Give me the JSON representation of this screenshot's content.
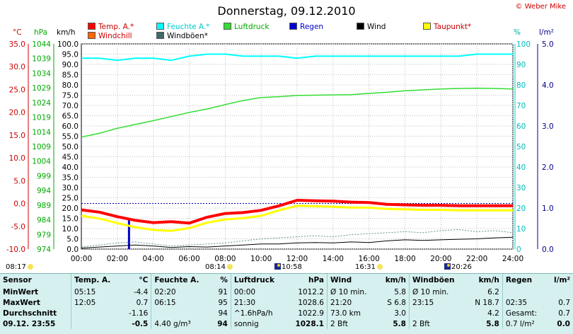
{
  "title": "Donnerstag, 09.12.2010",
  "copyright": "© Weber Mike",
  "legend": [
    {
      "label": "Temp. A.*",
      "color": "#ff0000",
      "text_color": "#cc0000"
    },
    {
      "label": "Feuchte A.*",
      "color": "#00ffff",
      "text_color": "#00cccc"
    },
    {
      "label": "Luftdruck",
      "color": "#33dd33",
      "text_color": "#00aa00"
    },
    {
      "label": "Regen",
      "color": "#0000cc",
      "text_color": "#0000cc"
    },
    {
      "label": "Wind",
      "color": "#000000",
      "text_color": "#000000"
    },
    {
      "label": "Taupunkt*",
      "color": "#ffff00",
      "text_color": "#cc0000"
    },
    {
      "label": "Windchill",
      "color": "#ff6600",
      "text_color": "#cc0000"
    },
    {
      "label": "Windböen*",
      "color": "#3c6b6b",
      "text_color": "#000000"
    }
  ],
  "units": {
    "celsius": "°C",
    "hpa": "hPa",
    "kmh": "km/h",
    "percent": "%",
    "rain": "l/m²"
  },
  "markers": {
    "sunrise_left": "08:17",
    "sunrise": "08:14",
    "moonrise": "10:58",
    "sunset": "16:31",
    "moonset": "20:26"
  },
  "chart_data": {
    "type": "line",
    "x_ticks": [
      "00:00",
      "02:00",
      "04:00",
      "06:00",
      "08:00",
      "10:00",
      "12:00",
      "14:00",
      "16:00",
      "18:00",
      "20:00",
      "22:00",
      "24:00"
    ],
    "axes": {
      "temp_ticks": [
        "35.0",
        "30.0",
        "25.0",
        "20.0",
        "15.0",
        "10.0",
        "5.0",
        "0.0",
        "-5.0",
        "-10.0"
      ],
      "temp_range": [
        -10,
        35
      ],
      "hpa_ticks": [
        "1044",
        "1039",
        "1034",
        "1029",
        "1024",
        "1019",
        "1014",
        "1009",
        "1004",
        "999",
        "994",
        "989",
        "984",
        "979",
        "974"
      ],
      "hpa_range": [
        974,
        1044
      ],
      "kmh_ticks": [
        "100.0",
        "95.0",
        "90.0",
        "85.0",
        "80.0",
        "75.0",
        "70.0",
        "65.0",
        "60.0",
        "55.0",
        "50.0",
        "45.0",
        "40.0",
        "35.0",
        "30.0",
        "25.0",
        "20.0",
        "15.0",
        "10.0",
        "5.0",
        "0.0"
      ],
      "kmh_range": [
        0,
        100
      ],
      "percent_ticks": [
        "100",
        "90",
        "80",
        "70",
        "60",
        "50",
        "40",
        "30",
        "20",
        "10",
        "0"
      ],
      "percent_range": [
        0,
        100
      ],
      "rain_ticks": [
        "5.0",
        "4.0",
        "3.0",
        "2.0",
        "1.0",
        "0.0"
      ],
      "rain_range": [
        0,
        5
      ]
    },
    "grid": true,
    "series": [
      {
        "name": "Temp. A.*",
        "axis": "temp",
        "color": "#ff0000",
        "x": [
          0,
          1,
          2,
          3,
          4,
          5,
          6,
          7,
          8,
          9,
          10,
          11,
          12,
          13,
          14,
          15,
          16,
          17,
          18,
          19,
          20,
          21,
          22,
          23,
          24
        ],
        "y": [
          -1.4,
          -1.9,
          -2.9,
          -3.7,
          -4.2,
          -4.0,
          -4.3,
          -3.0,
          -2.2,
          -2.0,
          -1.5,
          -0.5,
          0.7,
          0.6,
          0.5,
          0.3,
          0.2,
          -0.2,
          -0.3,
          -0.4,
          -0.4,
          -0.5,
          -0.5,
          -0.5,
          -0.5
        ]
      },
      {
        "name": "Taupunkt*",
        "axis": "temp",
        "color": "#ffff00",
        "x": [
          0,
          1,
          2,
          3,
          4,
          5,
          6,
          7,
          8,
          9,
          10,
          11,
          12,
          13,
          14,
          15,
          16,
          17,
          18,
          19,
          20,
          21,
          22,
          23,
          24
        ],
        "y": [
          -2.7,
          -3.3,
          -4.3,
          -5.2,
          -5.8,
          -6.0,
          -5.4,
          -4.2,
          -3.5,
          -3.2,
          -2.7,
          -1.5,
          -0.5,
          -0.6,
          -0.7,
          -0.9,
          -0.9,
          -1.2,
          -1.3,
          -1.4,
          -1.4,
          -1.5,
          -1.5,
          -1.5,
          -1.5
        ]
      },
      {
        "name": "Feuchte A.*",
        "axis": "percent",
        "color": "#00ffff",
        "x": [
          0,
          1,
          2,
          3,
          4,
          5,
          6,
          7,
          8,
          9,
          10,
          11,
          12,
          13,
          14,
          15,
          16,
          17,
          18,
          19,
          20,
          21,
          22,
          23,
          24
        ],
        "y": [
          93,
          93,
          92,
          93,
          93,
          92,
          94,
          95,
          95,
          94,
          94,
          94,
          93,
          94,
          94,
          94,
          94,
          94,
          94,
          94,
          94,
          94,
          95,
          95,
          95
        ]
      },
      {
        "name": "Luftdruck",
        "axis": "hpa",
        "color": "#33dd33",
        "x": [
          0,
          1,
          2,
          3,
          4,
          5,
          6,
          7,
          8,
          9,
          10,
          11,
          12,
          13,
          14,
          15,
          16,
          17,
          18,
          19,
          20,
          21,
          22,
          23,
          24
        ],
        "y": [
          1012.2,
          1013.5,
          1015.2,
          1016.5,
          1017.8,
          1019.2,
          1020.6,
          1021.8,
          1023.3,
          1024.7,
          1025.7,
          1026.0,
          1026.4,
          1026.5,
          1026.6,
          1026.7,
          1027.1,
          1027.5,
          1028.0,
          1028.3,
          1028.6,
          1028.8,
          1028.9,
          1028.8,
          1028.6
        ]
      },
      {
        "name": "Wind",
        "axis": "kmh",
        "color": "#000000",
        "x": [
          0,
          1,
          2,
          3,
          4,
          5,
          6,
          7,
          8,
          9,
          10,
          11,
          12,
          13,
          14,
          15,
          16,
          17,
          18,
          19,
          20,
          21,
          22,
          23,
          24
        ],
        "y": [
          0.5,
          1.0,
          1.5,
          2.0,
          1.5,
          0.8,
          1.2,
          1.0,
          1.5,
          2.0,
          2.5,
          2.5,
          3.0,
          3.2,
          3.0,
          3.5,
          3.2,
          4.0,
          4.5,
          4.2,
          4.5,
          4.8,
          5.0,
          5.5,
          5.8
        ]
      },
      {
        "name": "Windböen*",
        "axis": "kmh",
        "color": "#5f8f8f",
        "dashed": true,
        "x": [
          0,
          1,
          2,
          3,
          4,
          5,
          6,
          7,
          8,
          9,
          10,
          11,
          12,
          13,
          14,
          15,
          16,
          17,
          18,
          19,
          20,
          21,
          22,
          23,
          24
        ],
        "y": [
          1.0,
          2.0,
          3.0,
          3.5,
          2.5,
          1.5,
          2.0,
          2.5,
          3.0,
          4.0,
          5.0,
          5.5,
          6.0,
          6.5,
          6.0,
          7.0,
          7.5,
          8.0,
          8.5,
          8.0,
          9.0,
          9.5,
          8.5,
          9.0,
          8.0
        ]
      }
    ],
    "rain_bars": [
      {
        "x": 2.65,
        "value": 0.7
      }
    ]
  },
  "stats": {
    "headers": [
      "Sensor",
      "Temp. A.",
      "°C",
      "Feuchte A.",
      "%",
      "Luftdruck",
      "hPa",
      "Wind",
      "km/h",
      "Windböen",
      "km/h",
      "Regen",
      "l/m²"
    ],
    "rows": [
      {
        "label": "MinWert",
        "cells": [
          "05:15",
          "-4.4",
          "02:20",
          "91",
          "00:00",
          "1012.2",
          "Ø 10 min.",
          "5.8",
          "Ø 10 min.",
          "6.2",
          "",
          ""
        ]
      },
      {
        "label": "MaxWert",
        "cells": [
          "12:05",
          "0.7",
          "06:15",
          "95",
          "21:30",
          "1028.6",
          "21:20",
          "S 6.8",
          "23:15",
          "N 18.7",
          "02:35",
          "0.7"
        ]
      },
      {
        "label": "Durchschnitt",
        "cells": [
          "",
          "-1.16",
          "",
          "94",
          "^1.6hPa/h",
          "1022.9",
          "73.0 km",
          "3.0",
          "",
          "4.2",
          "Gesamt:",
          "0.7"
        ]
      },
      {
        "label": "09.12. 23:55",
        "cells": [
          "",
          "-0.5",
          "4.40 g/m³",
          "94",
          "sonnig",
          "1028.1",
          "2 Bft",
          "5.8",
          "2 Bft",
          "5.8",
          "0.7 l/m²",
          "0.0"
        ]
      }
    ]
  }
}
